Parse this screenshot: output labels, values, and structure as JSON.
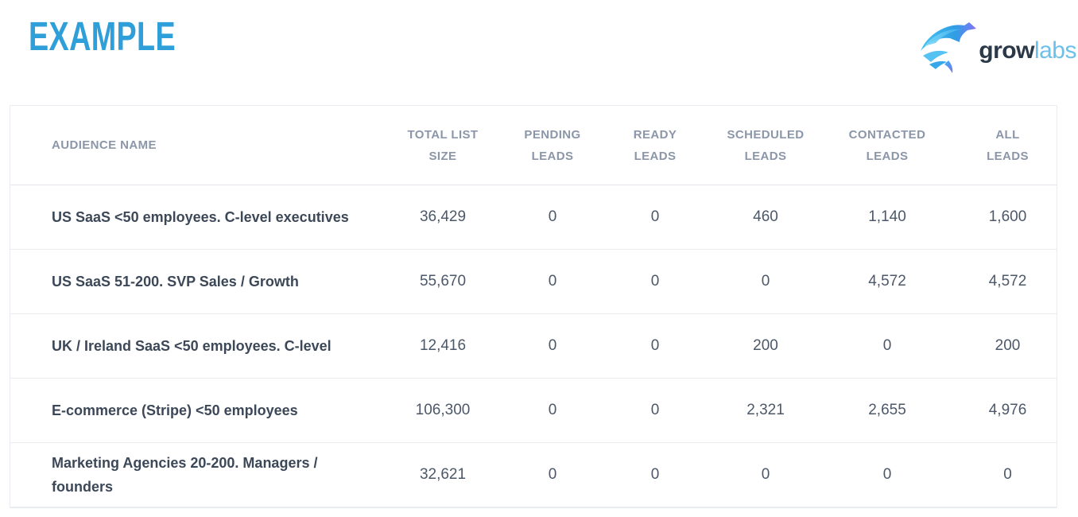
{
  "page": {
    "heading": "EXAMPLE"
  },
  "brand": {
    "icon": "growlabs-swoosh",
    "word_bold": "grow",
    "word_light": "labs"
  },
  "colors": {
    "heading_blue": "#2e9fd8",
    "brand_navy": "#2b3847",
    "brand_light_blue": "#6cc0ea",
    "header_text": "#8b96a8",
    "row_name_text": "#3c4858",
    "row_value_text": "#4c5869",
    "divider": "#e9ebef"
  },
  "table": {
    "column_keys": [
      "total_list_size",
      "pending_leads",
      "ready_leads",
      "scheduled_leads",
      "contacted_leads",
      "all_leads"
    ],
    "columns": [
      {
        "line1": "AUDIENCE NAME",
        "line2": ""
      },
      {
        "line1": "TOTAL LIST",
        "line2": "SIZE"
      },
      {
        "line1": "PENDING",
        "line2": "LEADS"
      },
      {
        "line1": "READY",
        "line2": "LEADS"
      },
      {
        "line1": "SCHEDULED",
        "line2": "LEADS"
      },
      {
        "line1": "CONTACTED",
        "line2": "LEADS"
      },
      {
        "line1": "ALL",
        "line2": "LEADS"
      }
    ],
    "rows": [
      {
        "name": "US SaaS <50 employees. C-level executives",
        "values": [
          "36,429",
          "0",
          "0",
          "460",
          "1,140",
          "1,600"
        ]
      },
      {
        "name": "US SaaS 51-200. SVP Sales / Growth",
        "values": [
          "55,670",
          "0",
          "0",
          "0",
          "4,572",
          "4,572"
        ]
      },
      {
        "name": "UK / Ireland SaaS <50 employees. C-level",
        "values": [
          "12,416",
          "0",
          "0",
          "200",
          "0",
          "200"
        ]
      },
      {
        "name": "E-commerce (Stripe) <50 employees",
        "values": [
          "106,300",
          "0",
          "0",
          "2,321",
          "2,655",
          "4,976"
        ]
      },
      {
        "name": "Marketing Agencies 20-200. Managers / founders",
        "values": [
          "32,621",
          "0",
          "0",
          "0",
          "0",
          "0"
        ]
      }
    ]
  }
}
